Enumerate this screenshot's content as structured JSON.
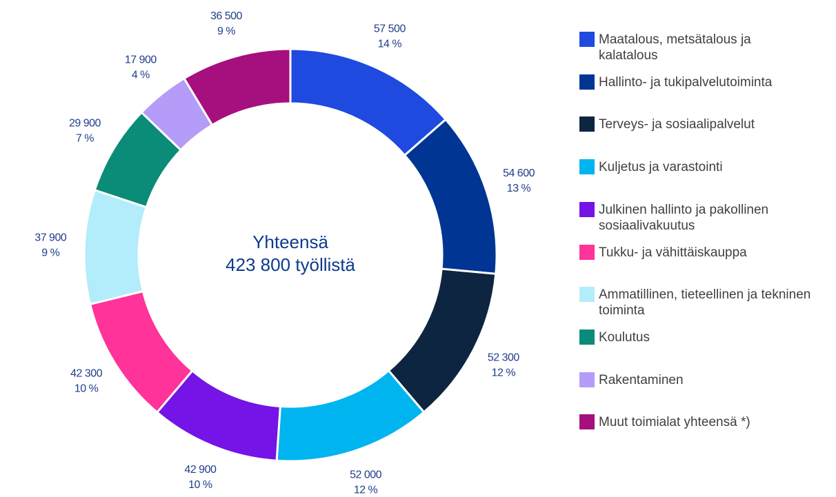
{
  "chart_data": {
    "type": "donut",
    "center_label": [
      "Yhteensä",
      "423 800 työllistä"
    ],
    "categories": [
      "Maatalous, metsätalous ja kalatalous",
      "Hallinto- ja tukipalvelutoiminta",
      "Terveys- ja sosiaalipalvelut",
      "Kuljetus ja varastointi",
      "Julkinen hallinto ja pakollinen sosiaalivakuutus",
      "Tukku- ja vähittäiskauppa",
      "Ammatillinen, tieteellinen ja tekninen toiminta",
      "Koulutus",
      "Rakentaminen",
      "Muut toimialat yhteensä *)"
    ],
    "values": [
      57500,
      54600,
      52300,
      52000,
      42900,
      42300,
      37900,
      29900,
      17900,
      36500
    ],
    "value_labels": [
      "57 500",
      "54 600",
      "52 300",
      "52 000",
      "42 900",
      "42 300",
      "37 900",
      "29 900",
      "17 900",
      "36 500"
    ],
    "shares": [
      14,
      13,
      12,
      12,
      10,
      10,
      9,
      7,
      4,
      9
    ],
    "share_labels": [
      "14 %",
      "13 %",
      "12 %",
      "12 %",
      "10 %",
      "10 %",
      "9 %",
      "7 %",
      "4 %",
      "9 %"
    ],
    "colors": [
      "#1f4ae0",
      "#003594",
      "#0d2540",
      "#00b4f0",
      "#7414e6",
      "#ff3399",
      "#b3ecfb",
      "#0a8c78",
      "#b59cf8",
      "#a60f7e"
    ],
    "legend": "right"
  }
}
